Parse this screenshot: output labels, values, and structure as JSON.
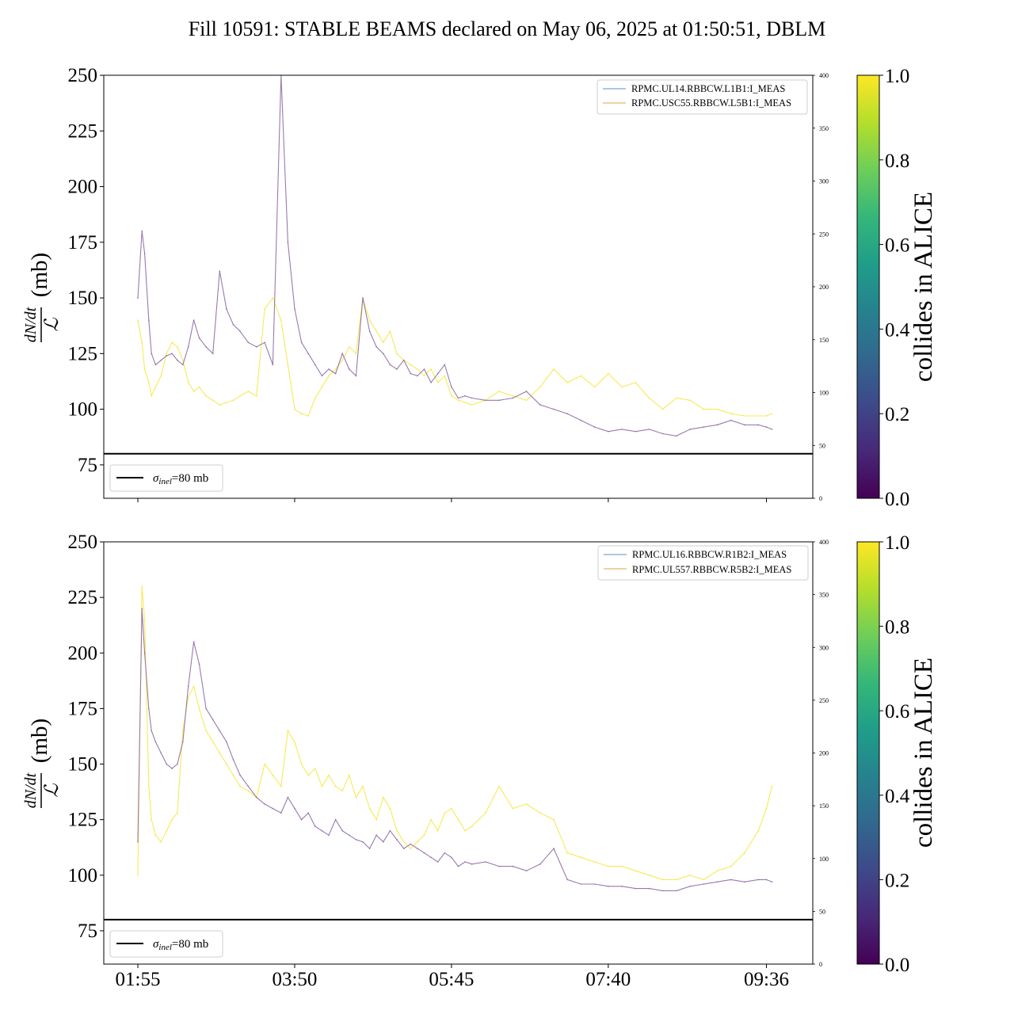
{
  "figure": {
    "title": "Fill 10591: STABLE BEAMS declared on May 06, 2025 at 01:50:51, DBLM"
  },
  "colors": {
    "purple": "#8e6ba3",
    "yellow": "#f6e63a",
    "legend_blue": "#5b8fc4",
    "legend_orange": "#d9a64a",
    "black": "#000000",
    "viridis": [
      "#440154",
      "#482878",
      "#3e4989",
      "#31688e",
      "#26828e",
      "#1f9e89",
      "#35b779",
      "#6ece58",
      "#b5de2b",
      "#fde725"
    ]
  },
  "chart_data": [
    {
      "type": "line",
      "panel": "top",
      "ylabel": "dN/dt / ℒ (mb)",
      "ylabel_parts": {
        "num": "dN/dt",
        "den": "ℒ",
        "unit": "(mb)"
      },
      "ylim": [
        60,
        250
      ],
      "yticks": [
        75,
        100,
        125,
        150,
        175,
        200,
        225,
        250
      ],
      "right_ylim": [
        0,
        400
      ],
      "right_yticks": [
        0,
        50,
        100,
        150,
        200,
        250,
        300,
        350,
        400
      ],
      "xlim": [
        "01:30",
        "10:10"
      ],
      "xticks": [
        "01:55",
        "03:50",
        "05:45",
        "07:40",
        "09:36"
      ],
      "x_ticklabels_visible": false,
      "legend": {
        "position": "upper right",
        "entries": [
          "RPMC.UL14.RBBCW.L1B1:I_MEAS",
          "RPMC.USC55.RBBCW.L5B1:I_MEAS"
        ]
      },
      "reference_line": {
        "y": 80,
        "label_sym": "σ",
        "label_sub": "inel",
        "label_rest": "=80 mb",
        "legend_position": "lower left"
      },
      "series": [
        {
          "color_value": 0.1,
          "x": [
            "01:55",
            "01:58",
            "02:00",
            "02:03",
            "02:05",
            "02:08",
            "02:12",
            "02:16",
            "02:20",
            "02:24",
            "02:28",
            "02:32",
            "02:36",
            "02:40",
            "02:45",
            "02:50",
            "02:55",
            "03:00",
            "03:05",
            "03:10",
            "03:16",
            "03:22",
            "03:28",
            "03:34",
            "03:40",
            "03:45",
            "03:50",
            "03:55",
            "04:00",
            "04:05",
            "04:10",
            "04:15",
            "04:20",
            "04:25",
            "04:30",
            "04:35",
            "04:40",
            "04:45",
            "04:50",
            "04:55",
            "05:00",
            "05:05",
            "05:10",
            "05:15",
            "05:20",
            "05:25",
            "05:30",
            "05:35",
            "05:40",
            "05:45",
            "05:50",
            "05:55",
            "06:00",
            "06:10",
            "06:20",
            "06:30",
            "06:40",
            "06:50",
            "07:00",
            "07:10",
            "07:20",
            "07:30",
            "07:40",
            "07:50",
            "08:00",
            "08:10",
            "08:20",
            "08:30",
            "08:40",
            "08:50",
            "09:00",
            "09:10",
            "09:20",
            "09:30",
            "09:36",
            "09:40"
          ],
          "y": [
            150,
            180,
            170,
            140,
            125,
            120,
            122,
            124,
            125,
            122,
            120,
            128,
            140,
            132,
            128,
            125,
            162,
            145,
            138,
            135,
            130,
            128,
            130,
            120,
            250,
            175,
            145,
            130,
            125,
            120,
            115,
            118,
            116,
            125,
            118,
            115,
            150,
            135,
            128,
            125,
            120,
            118,
            122,
            116,
            115,
            118,
            112,
            116,
            120,
            110,
            105,
            106,
            105,
            104,
            104,
            105,
            108,
            102,
            100,
            98,
            95,
            92,
            90,
            91,
            90,
            91,
            89,
            88,
            91,
            92,
            93,
            95,
            93,
            93,
            92,
            91
          ]
        },
        {
          "color_value": 0.95,
          "x": [
            "01:55",
            "01:58",
            "02:00",
            "02:03",
            "02:05",
            "02:08",
            "02:12",
            "02:16",
            "02:20",
            "02:24",
            "02:28",
            "02:32",
            "02:36",
            "02:40",
            "02:45",
            "02:50",
            "02:55",
            "03:00",
            "03:05",
            "03:10",
            "03:16",
            "03:22",
            "03:28",
            "03:34",
            "03:40",
            "03:45",
            "03:50",
            "03:55",
            "04:00",
            "04:05",
            "04:10",
            "04:15",
            "04:20",
            "04:25",
            "04:30",
            "04:35",
            "04:40",
            "04:45",
            "04:50",
            "04:55",
            "05:00",
            "05:05",
            "05:10",
            "05:15",
            "05:20",
            "05:25",
            "05:30",
            "05:35",
            "05:40",
            "05:45",
            "05:50",
            "05:55",
            "06:00",
            "06:10",
            "06:20",
            "06:30",
            "06:40",
            "06:50",
            "07:00",
            "07:10",
            "07:20",
            "07:30",
            "07:40",
            "07:50",
            "08:00",
            "08:10",
            "08:20",
            "08:30",
            "08:40",
            "08:50",
            "09:00",
            "09:10",
            "09:20",
            "09:30",
            "09:36",
            "09:40"
          ],
          "y": [
            140,
            130,
            118,
            112,
            106,
            110,
            115,
            125,
            130,
            128,
            122,
            112,
            108,
            110,
            106,
            104,
            102,
            103,
            104,
            106,
            108,
            106,
            145,
            150,
            140,
            120,
            100,
            98,
            97,
            105,
            110,
            115,
            118,
            122,
            128,
            125,
            150,
            140,
            135,
            130,
            135,
            125,
            122,
            120,
            118,
            115,
            118,
            112,
            115,
            106,
            104,
            103,
            102,
            104,
            108,
            106,
            104,
            110,
            118,
            112,
            115,
            110,
            116,
            110,
            112,
            105,
            100,
            105,
            104,
            100,
            100,
            98,
            97,
            97,
            97,
            98
          ]
        }
      ]
    },
    {
      "type": "line",
      "panel": "bottom",
      "ylabel": "dN/dt / ℒ (mb)",
      "ylabel_parts": {
        "num": "dN/dt",
        "den": "ℒ",
        "unit": "(mb)"
      },
      "ylim": [
        60,
        250
      ],
      "yticks": [
        75,
        100,
        125,
        150,
        175,
        200,
        225,
        250
      ],
      "right_ylim": [
        0,
        400
      ],
      "right_yticks": [
        0,
        50,
        100,
        150,
        200,
        250,
        300,
        350,
        400
      ],
      "xlim": [
        "01:30",
        "10:10"
      ],
      "xticks": [
        "01:55",
        "03:50",
        "05:45",
        "07:40",
        "09:36"
      ],
      "x_ticklabels_visible": true,
      "legend": {
        "position": "upper right",
        "entries": [
          "RPMC.UL16.RBBCW.R1B2:I_MEAS",
          "RPMC.UL557.RBBCW.R5B2:I_MEAS"
        ]
      },
      "reference_line": {
        "y": 80,
        "label_sym": "σ",
        "label_sub": "inel",
        "label_rest": "=80 mb",
        "legend_position": "lower left"
      },
      "series": [
        {
          "color_value": 0.1,
          "x": [
            "01:55",
            "01:58",
            "02:00",
            "02:03",
            "02:05",
            "02:08",
            "02:12",
            "02:16",
            "02:20",
            "02:24",
            "02:28",
            "02:32",
            "02:36",
            "02:40",
            "02:45",
            "02:50",
            "02:55",
            "03:00",
            "03:05",
            "03:10",
            "03:16",
            "03:22",
            "03:28",
            "03:34",
            "03:40",
            "03:45",
            "03:50",
            "03:55",
            "04:00",
            "04:05",
            "04:10",
            "04:15",
            "04:20",
            "04:25",
            "04:30",
            "04:35",
            "04:40",
            "04:45",
            "04:50",
            "04:55",
            "05:00",
            "05:05",
            "05:10",
            "05:15",
            "05:20",
            "05:25",
            "05:30",
            "05:35",
            "05:40",
            "05:45",
            "05:50",
            "05:55",
            "06:00",
            "06:10",
            "06:20",
            "06:30",
            "06:40",
            "06:50",
            "07:00",
            "07:10",
            "07:20",
            "07:30",
            "07:40",
            "07:50",
            "08:00",
            "08:10",
            "08:20",
            "08:30",
            "08:40",
            "08:50",
            "09:00",
            "09:10",
            "09:20",
            "09:30",
            "09:36",
            "09:40"
          ],
          "y": [
            115,
            220,
            200,
            175,
            165,
            160,
            155,
            150,
            148,
            150,
            160,
            185,
            205,
            195,
            175,
            170,
            165,
            160,
            152,
            145,
            140,
            135,
            132,
            130,
            128,
            135,
            130,
            125,
            128,
            122,
            120,
            118,
            125,
            120,
            118,
            116,
            115,
            112,
            118,
            115,
            120,
            116,
            112,
            114,
            112,
            110,
            108,
            106,
            110,
            108,
            104,
            106,
            105,
            106,
            104,
            104,
            102,
            105,
            112,
            98,
            96,
            96,
            95,
            95,
            94,
            94,
            93,
            93,
            95,
            96,
            97,
            98,
            97,
            98,
            98,
            97
          ]
        },
        {
          "color_value": 0.95,
          "x": [
            "01:55",
            "01:58",
            "02:00",
            "02:03",
            "02:05",
            "02:08",
            "02:12",
            "02:16",
            "02:20",
            "02:24",
            "02:28",
            "02:32",
            "02:36",
            "02:40",
            "02:45",
            "02:50",
            "02:55",
            "03:00",
            "03:05",
            "03:10",
            "03:16",
            "03:22",
            "03:28",
            "03:34",
            "03:40",
            "03:45",
            "03:50",
            "03:55",
            "04:00",
            "04:05",
            "04:10",
            "04:15",
            "04:20",
            "04:25",
            "04:30",
            "04:35",
            "04:40",
            "04:45",
            "04:50",
            "04:55",
            "05:00",
            "05:05",
            "05:10",
            "05:15",
            "05:20",
            "05:25",
            "05:30",
            "05:35",
            "05:40",
            "05:45",
            "05:50",
            "05:55",
            "06:00",
            "06:10",
            "06:20",
            "06:30",
            "06:40",
            "06:50",
            "07:00",
            "07:10",
            "07:20",
            "07:30",
            "07:40",
            "07:50",
            "08:00",
            "08:10",
            "08:20",
            "08:30",
            "08:40",
            "08:50",
            "09:00",
            "09:10",
            "09:20",
            "09:30",
            "09:36",
            "09:40"
          ],
          "y": [
            100,
            230,
            215,
            140,
            125,
            118,
            115,
            120,
            125,
            128,
            165,
            180,
            185,
            175,
            165,
            160,
            155,
            150,
            145,
            140,
            138,
            135,
            150,
            145,
            140,
            165,
            160,
            150,
            145,
            148,
            140,
            145,
            140,
            138,
            145,
            135,
            140,
            130,
            125,
            135,
            130,
            120,
            115,
            112,
            115,
            118,
            125,
            120,
            128,
            130,
            125,
            120,
            122,
            128,
            140,
            130,
            132,
            128,
            125,
            110,
            108,
            106,
            104,
            104,
            102,
            100,
            98,
            98,
            100,
            98,
            102,
            104,
            110,
            120,
            130,
            140
          ]
        }
      ]
    }
  ],
  "colorbars": [
    {
      "label": "collides in ALICE",
      "ticks": [
        "0.0",
        "0.2",
        "0.4",
        "0.6",
        "0.8",
        "1.0"
      ]
    },
    {
      "label": "collides in ALICE",
      "ticks": [
        "0.0",
        "0.2",
        "0.4",
        "0.6",
        "0.8",
        "1.0"
      ]
    }
  ]
}
